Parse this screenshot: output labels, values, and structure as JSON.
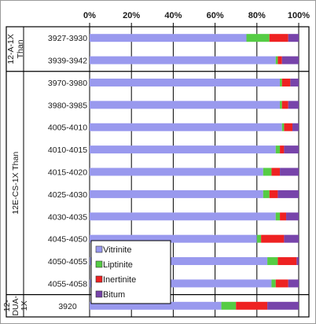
{
  "chart_data": {
    "type": "bar",
    "orientation": "horizontal",
    "stacked": true,
    "percent_axis": true,
    "xlim": [
      0,
      100
    ],
    "x_ticks": [
      "0%",
      "20%",
      "40%",
      "60%",
      "80%",
      "100%"
    ],
    "grid": true,
    "legend_position": "bottom-left",
    "groups": [
      {
        "label": "12-A-1X Than",
        "categories": [
          "3927-3930",
          "3939-3942"
        ]
      },
      {
        "label": "12E-CS-1X Than",
        "categories": [
          "3970-3980",
          "3980-3985",
          "4005-4010",
          "4010-4015",
          "4015-4020",
          "4025-4030",
          "4030-4035",
          "4045-4050",
          "4050-4055",
          "4055-4058"
        ]
      },
      {
        "label": "12-DUA-1X",
        "categories": [
          "3920"
        ]
      }
    ],
    "categories": [
      "3927-3930",
      "3939-3942",
      "3970-3980",
      "3980-3985",
      "4005-4010",
      "4010-4015",
      "4015-4020",
      "4025-4030",
      "4030-4035",
      "4045-4050",
      "4050-4055",
      "4055-4058",
      "3920"
    ],
    "series": [
      {
        "name": "Vitrinite",
        "color": "#9999ee",
        "values": [
          75,
          89,
          91,
          91,
          92,
          89,
          83,
          83,
          89,
          80,
          85,
          87,
          63
        ]
      },
      {
        "name": "Liptinite",
        "color": "#55cc44",
        "values": [
          11,
          1,
          1,
          1,
          1,
          2,
          4,
          3,
          2,
          2,
          5,
          2,
          7
        ]
      },
      {
        "name": "Inertinite",
        "color": "#ee2222",
        "values": [
          9,
          2,
          4,
          3,
          4,
          2,
          4,
          4,
          3,
          11,
          9,
          6,
          15
        ]
      },
      {
        "name": "Bitum",
        "color": "#7744aa",
        "values": [
          5,
          8,
          4,
          5,
          3,
          7,
          9,
          10,
          6,
          7,
          1,
          5,
          15
        ]
      }
    ]
  }
}
